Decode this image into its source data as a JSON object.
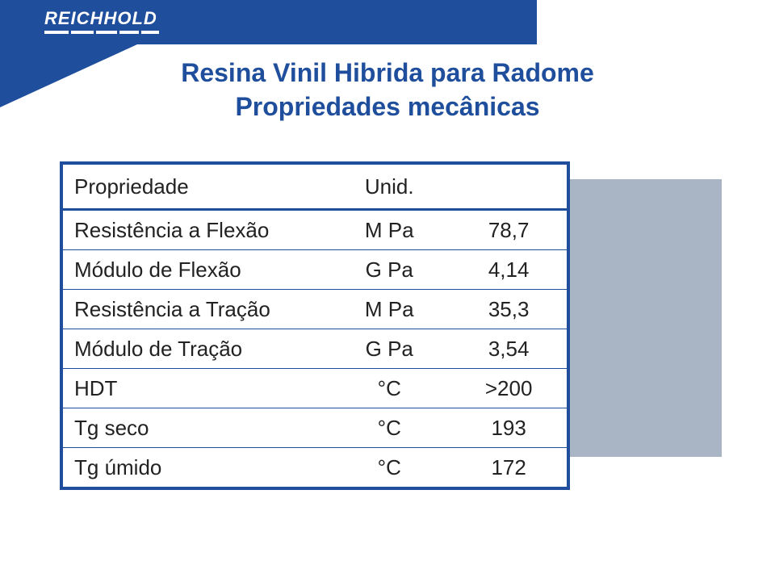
{
  "brand": "REICHHOLD",
  "title_line1": "Resina Vinil Hibrida para Radome",
  "title_line2": "Propriedades mecânicas",
  "table": {
    "header": {
      "prop": "Propriedade",
      "unid": "Unid."
    },
    "rows": [
      {
        "prop": "Resistência a Flexão",
        "unid": "M Pa",
        "val": "78,7"
      },
      {
        "prop": "Módulo de Flexão",
        "unid": "G Pa",
        "val": "4,14"
      },
      {
        "prop": "Resistência a Tração",
        "unid": "M Pa",
        "val": "35,3"
      },
      {
        "prop": "Módulo de Tração",
        "unid": "G Pa",
        "val": "3,54"
      },
      {
        "prop": "HDT",
        "unid": "°C",
        "val": ">200"
      },
      {
        "prop": "Tg seco",
        "unid": "°C",
        "val": "193"
      },
      {
        "prop": "Tg úmido",
        "unid": "°C",
        "val": "172"
      }
    ]
  },
  "colors": {
    "brand_blue": "#1f4e9c",
    "grey_box": "#a9b5c4",
    "white": "#ffffff"
  }
}
